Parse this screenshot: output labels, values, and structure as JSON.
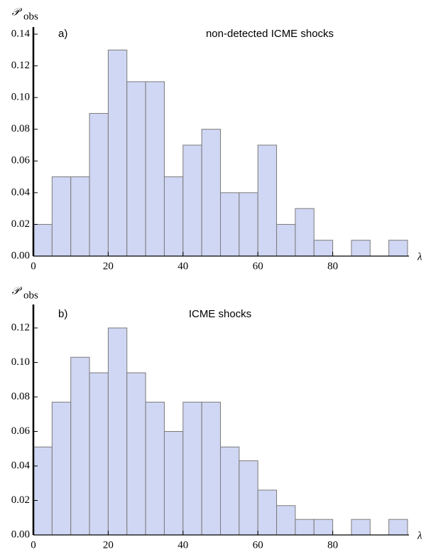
{
  "chart_data": [
    {
      "type": "histogram",
      "panel_label": "a)",
      "annotation": "non-detected ICME shocks",
      "y_label": "𝒫",
      "y_label_sub": "obs",
      "x_label": "λ",
      "bins": [
        0,
        5,
        10,
        15,
        20,
        25,
        30,
        35,
        40,
        45,
        50,
        55,
        60,
        65,
        70,
        75,
        80,
        85,
        90,
        95,
        100
      ],
      "values": [
        0.02,
        0.05,
        0.05,
        0.09,
        0.13,
        0.11,
        0.11,
        0.05,
        0.07,
        0.08,
        0.04,
        0.04,
        0.07,
        0.02,
        0.03,
        0.01,
        0,
        0.01,
        0,
        0.01
      ],
      "color": "#d0d7f4",
      "xlim": [
        0,
        100
      ],
      "xticks": [
        0,
        20,
        40,
        60,
        80
      ],
      "ylim": [
        0,
        0.14
      ],
      "yticks": [
        {
          "value": 0,
          "label": "0.00"
        },
        {
          "value": 0.02,
          "label": "0.02"
        },
        {
          "value": 0.04,
          "label": "0.04"
        },
        {
          "value": 0.06,
          "label": "0.06"
        },
        {
          "value": 0.08,
          "label": "0.08"
        },
        {
          "value": 0.1,
          "label": "0.10"
        },
        {
          "value": 0.12,
          "label": "0.12"
        },
        {
          "value": 0.14,
          "label": "0.14"
        }
      ]
    },
    {
      "type": "histogram",
      "panel_label": "b)",
      "annotation": "ICME shocks",
      "y_label": "𝒫",
      "y_label_sub": "obs",
      "x_label": "λ",
      "bins": [
        0,
        5,
        10,
        15,
        20,
        25,
        30,
        35,
        40,
        45,
        50,
        55,
        60,
        65,
        70,
        75,
        80,
        85,
        90,
        95,
        100
      ],
      "values": [
        0.051,
        0.077,
        0.103,
        0.094,
        0.12,
        0.094,
        0.077,
        0.06,
        0.077,
        0.077,
        0.051,
        0.043,
        0.026,
        0.017,
        0.009,
        0.009,
        0,
        0.009,
        0,
        0.009
      ],
      "color": "#d0d7f4",
      "xlim": [
        0,
        100
      ],
      "xticks": [
        0,
        20,
        40,
        60,
        80
      ],
      "ylim": [
        0,
        0.12
      ],
      "yticks": [
        {
          "value": 0,
          "label": "0.00"
        },
        {
          "value": 0.02,
          "label": "0.02"
        },
        {
          "value": 0.04,
          "label": "0.04"
        },
        {
          "value": 0.06,
          "label": "0.06"
        },
        {
          "value": 0.08,
          "label": "0.08"
        },
        {
          "value": 0.1,
          "label": "0.10"
        },
        {
          "value": 0.12,
          "label": "0.12"
        }
      ]
    }
  ]
}
